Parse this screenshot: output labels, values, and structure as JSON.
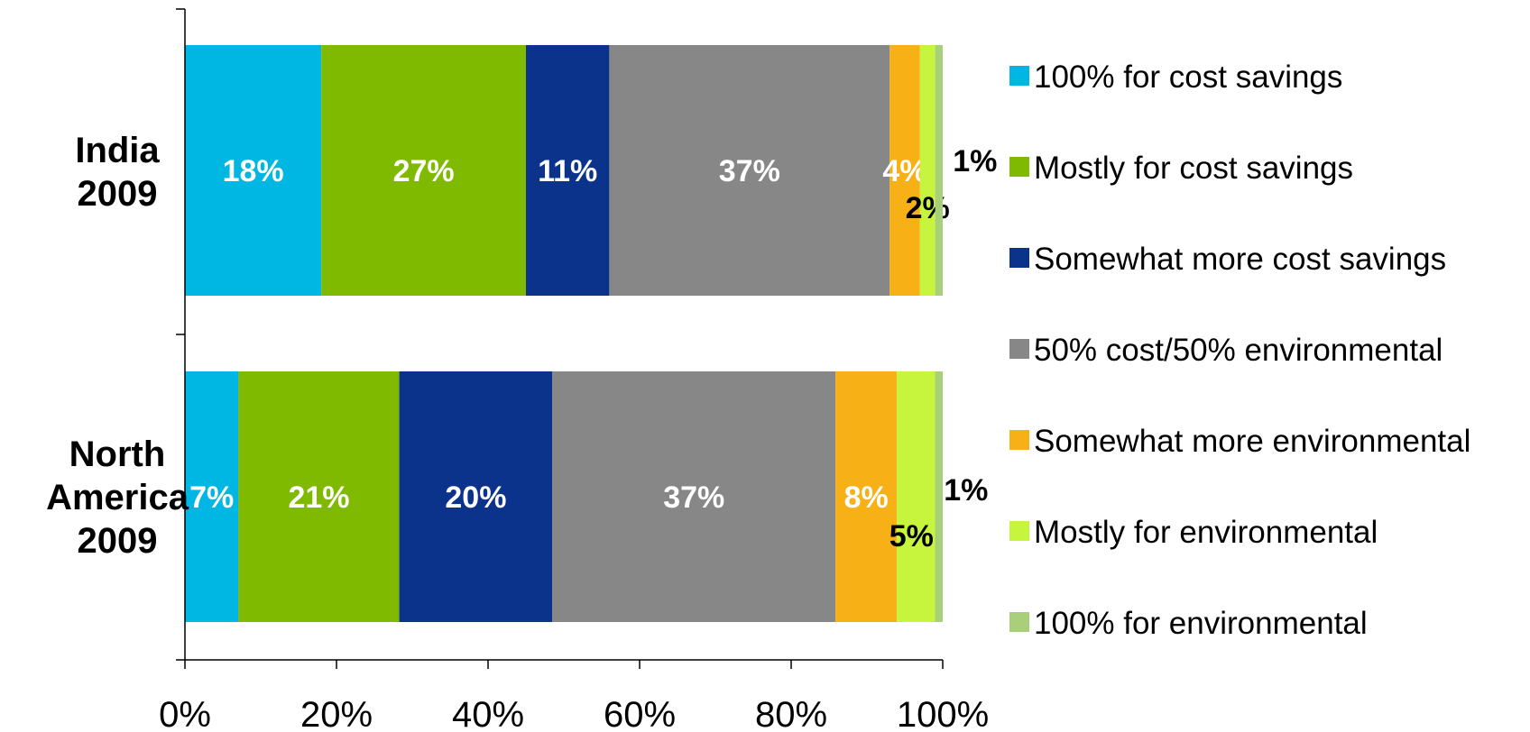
{
  "chart_data": {
    "type": "bar",
    "orientation": "horizontal",
    "stacked": true,
    "categories": [
      "India 2009",
      "North America 2009"
    ],
    "category_lines": [
      [
        "India",
        "2009"
      ],
      [
        "North",
        "America",
        "2009"
      ]
    ],
    "series": [
      {
        "name": "100% for cost savings",
        "color": "#00B7E3",
        "values": [
          18,
          7
        ],
        "labels": [
          "18%",
          "7%"
        ],
        "label_color": "#ffffff"
      },
      {
        "name": "Mostly for cost savings",
        "color": "#7FBA00",
        "values": [
          27,
          21
        ],
        "labels": [
          "27%",
          "21%"
        ],
        "label_color": "#ffffff"
      },
      {
        "name": "Somewhat more cost savings",
        "color": "#0B338C",
        "values": [
          11,
          20
        ],
        "labels": [
          "11%",
          "20%"
        ],
        "label_color": "#ffffff"
      },
      {
        "name": "50% cost/50% environmental",
        "color": "#878787",
        "values": [
          37,
          37
        ],
        "labels": [
          "37%",
          "37%"
        ],
        "label_color": "#ffffff"
      },
      {
        "name": "Somewhat more environmental",
        "color": "#F7B116",
        "values": [
          4,
          8
        ],
        "labels": [
          "4%",
          "8%"
        ],
        "label_color": "#ffffff"
      },
      {
        "name": "Mostly for environmental",
        "color": "#C7F53D",
        "values": [
          2,
          5
        ],
        "labels": [
          "2%",
          "5%"
        ],
        "label_color": "#000000"
      },
      {
        "name": "100% for environmental",
        "color": "#A9CF7B",
        "values": [
          1,
          1
        ],
        "labels": [
          "1%",
          "1%"
        ],
        "label_color": "#000000"
      }
    ],
    "x_ticks": [
      "0%",
      "20%",
      "40%",
      "60%",
      "80%",
      "100%"
    ],
    "xlim": [
      0,
      100
    ],
    "grid": false,
    "legend_position": "right"
  }
}
